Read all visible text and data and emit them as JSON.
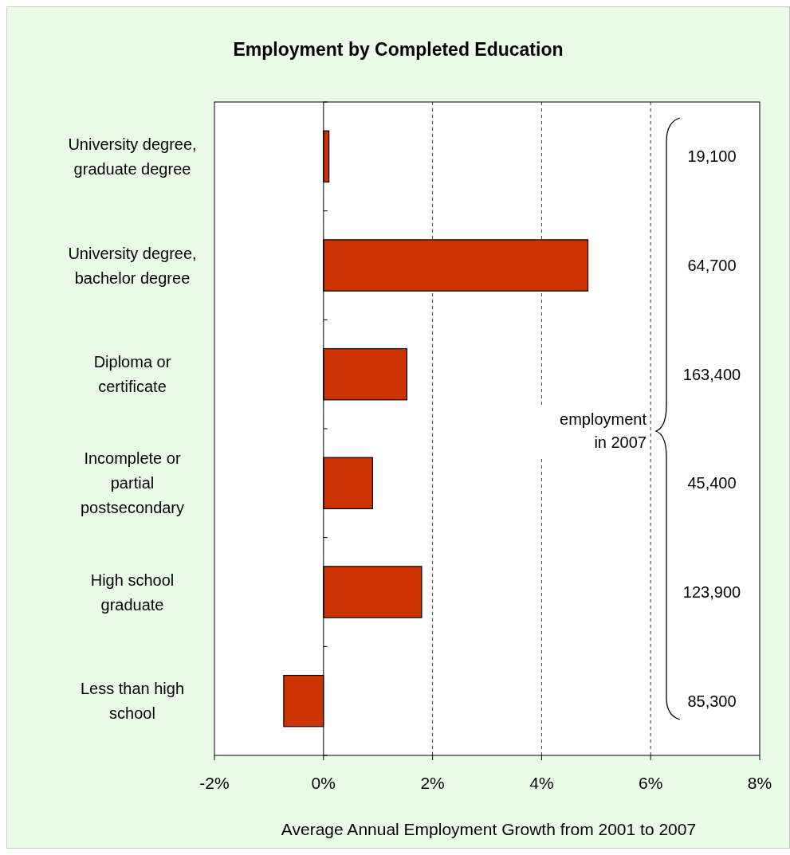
{
  "chart_data": {
    "type": "bar",
    "orientation": "horizontal",
    "title": "Employment by Completed Education",
    "xlabel": "Average Annual Employment Growth from 2001 to 2007",
    "categories": [
      "University degree,\ngraduate degree",
      "University degree,\nbachelor degree",
      "Diploma or\ncertificate",
      "Incomplete or\npartial\npostsecondary",
      "High school\ngraduate",
      "Less than high\nschool"
    ],
    "values": [
      0.1,
      4.85,
      1.53,
      0.9,
      1.8,
      -0.73
    ],
    "color": "#cc3300",
    "xlim": [
      -2,
      8
    ],
    "xticks": [
      {
        "value": -2,
        "label": "-2%"
      },
      {
        "value": 0,
        "label": "0%"
      },
      {
        "value": 2,
        "label": "2%"
      },
      {
        "value": 4,
        "label": "4%"
      },
      {
        "value": 6,
        "label": "6%"
      },
      {
        "value": 8,
        "label": "8%"
      }
    ],
    "grid": "x",
    "annotations": [
      "19,100",
      "64,700",
      "163,400",
      "45,400",
      "123,900",
      "85,300",
      "employment\nin 2007"
    ]
  }
}
